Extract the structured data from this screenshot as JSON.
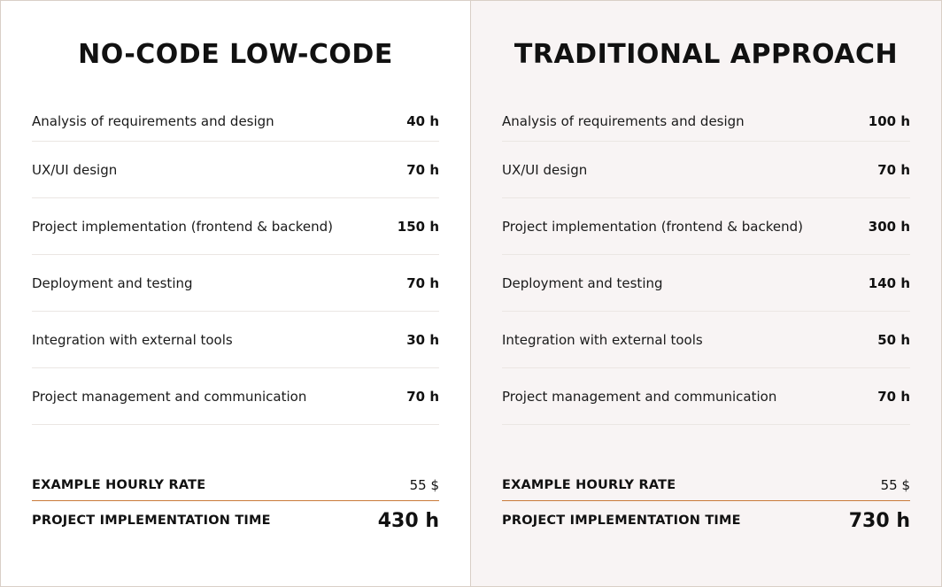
{
  "panels": [
    {
      "title": "NO-CODE LOW-CODE",
      "rows": [
        {
          "label": "Analysis of requirements and design",
          "value": "40 h"
        },
        {
          "label": "UX/UI design",
          "value": "70 h"
        },
        {
          "label": "Project implementation (frontend & backend)",
          "value": "150 h"
        },
        {
          "label": "Deployment and testing",
          "value": "70 h"
        },
        {
          "label": "Integration with external tools",
          "value": "30 h"
        },
        {
          "label": "Project management and communication",
          "value": "70 h"
        }
      ],
      "rate_label": "EXAMPLE HOURLY RATE",
      "rate_value": "55 $",
      "total_label": "PROJECT IMPLEMENTATION TIME",
      "total_value": "430 h"
    },
    {
      "title": "TRADITIONAL APPROACH",
      "rows": [
        {
          "label": "Analysis of requirements and design",
          "value": "100 h"
        },
        {
          "label": "UX/UI design",
          "value": "70 h"
        },
        {
          "label": "Project implementation (frontend & backend)",
          "value": "300 h"
        },
        {
          "label": "Deployment and testing",
          "value": "140 h"
        },
        {
          "label": "Integration with external tools",
          "value": "50 h"
        },
        {
          "label": "Project management and communication",
          "value": "70 h"
        }
      ],
      "rate_label": "EXAMPLE HOURLY RATE",
      "rate_value": "55 $",
      "total_label": "PROJECT IMPLEMENTATION TIME",
      "total_value": "730 h"
    }
  ],
  "colors": {
    "right_panel_bg": "#f8f4f4",
    "accent_line": "#c97a3a",
    "divider": "#ebe6e3"
  }
}
